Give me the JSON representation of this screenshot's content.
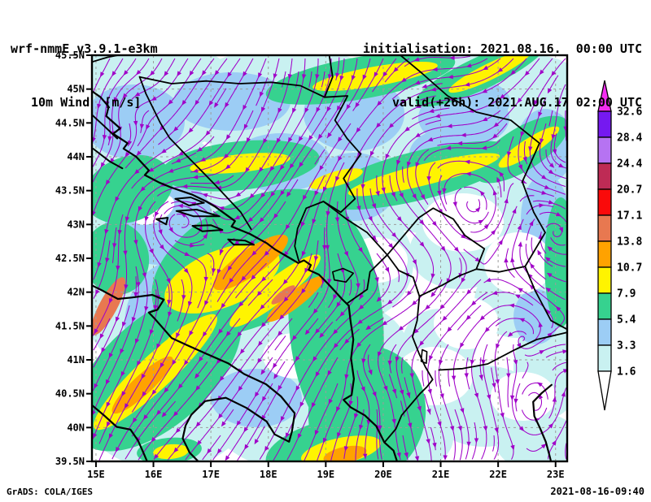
{
  "header": {
    "model_title": "wrf-nmmE_v3.9.1-e3km",
    "subtitle": "10m Wind  [m/s]",
    "initialisation": "initialisation: 2021.08.16.  00:00 UTC",
    "valid": "valid(+26h): 2021.AUG.17 02:00 UTC"
  },
  "footer": {
    "left": "GrADS: COLA/IGES",
    "right": "2021-08-16-09:40"
  },
  "chart_data": {
    "type": "map-streamline-shaded",
    "title": "10m Wind [m/s]",
    "model": "wrf-nmmE_v3.9.1-e3km",
    "init_time": "2021.08.16. 00:00 UTC",
    "valid_time": "2021.AUG.17 02:00 UTC",
    "lead_hours": 26,
    "region": "Adriatic / Balkans",
    "lon_range_deg_east": [
      15,
      23
    ],
    "lat_range_deg_north": [
      39.5,
      45.5
    ],
    "lon_ticks": [
      "15E",
      "16E",
      "17E",
      "18E",
      "19E",
      "20E",
      "21E",
      "22E",
      "23E"
    ],
    "lat_ticks": [
      "45.5N",
      "45N",
      "44.5N",
      "44N",
      "43.5N",
      "43N",
      "42.5N",
      "42N",
      "41.5N",
      "41N",
      "40.5N",
      "40N",
      "39.5N"
    ],
    "colorbar_levels_ms": [
      1.6,
      3.3,
      5.4,
      7.9,
      10.7,
      13.8,
      17.1,
      20.7,
      24.4,
      28.4,
      32.6
    ],
    "colorbar_colors": [
      "#C9F1F1",
      "#9CCDF5",
      "#36D28F",
      "#FFF400",
      "#FFA200",
      "#E87850",
      "#FA0A0A",
      "#BE2B55",
      "#B673F2",
      "#7519F0"
    ],
    "over_color": "#F32CF0",
    "under_color": "#FFFFFF",
    "streamline_color": "#A000C8",
    "coast_color": "#000000",
    "grid_color": "#9C9C9C",
    "legend_position": "right",
    "grid": "dashed, every 1 degree"
  }
}
